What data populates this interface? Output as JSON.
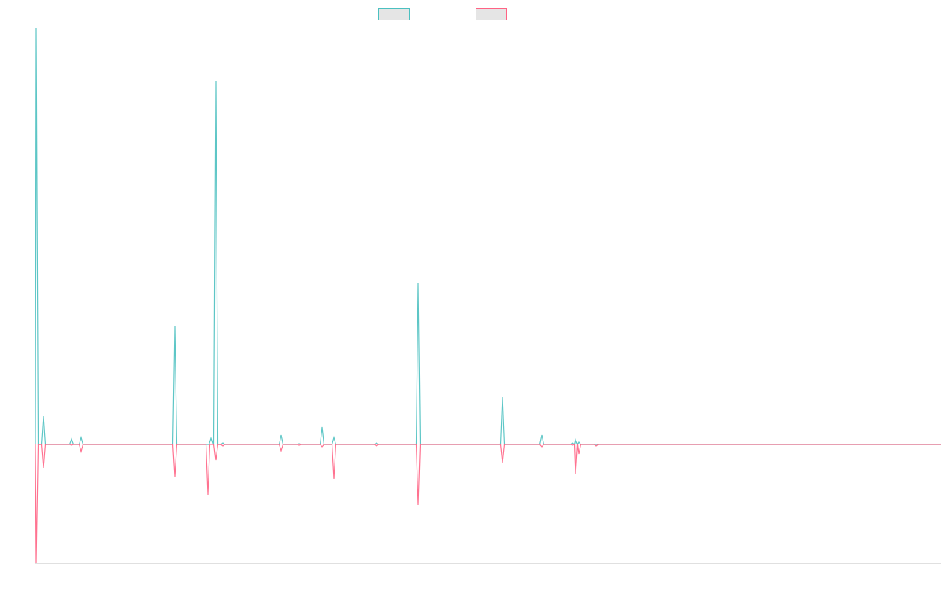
{
  "chart_data": {
    "type": "line",
    "title": "",
    "xlabel": "",
    "ylabel": "",
    "xlim": [
      0,
      1150
    ],
    "ylim": [
      -151,
      529
    ],
    "grid": false,
    "legend_position": "top-center",
    "series": [
      {
        "name": "",
        "color": "#4bc0c0",
        "peaks": [
          [
            1,
            529
          ],
          [
            10,
            36
          ],
          [
            46,
            7
          ],
          [
            58,
            9
          ],
          [
            177,
            150
          ],
          [
            223,
            8
          ],
          [
            229,
            462
          ],
          [
            238,
            2
          ],
          [
            312,
            12
          ],
          [
            335,
            1
          ],
          [
            364,
            22
          ],
          [
            379,
            9
          ],
          [
            433,
            2
          ],
          [
            486,
            205
          ],
          [
            593,
            60
          ],
          [
            643,
            12
          ],
          [
            682,
            2
          ],
          [
            686,
            6
          ],
          [
            690,
            3
          ]
        ]
      },
      {
        "name": "",
        "color": "#ff6384",
        "peaks": [
          [
            1,
            -151
          ],
          [
            10,
            -30
          ],
          [
            46,
            -1
          ],
          [
            58,
            -9
          ],
          [
            177,
            -41
          ],
          [
            219,
            -64
          ],
          [
            229,
            -20
          ],
          [
            238,
            -2
          ],
          [
            312,
            -8
          ],
          [
            335,
            -1
          ],
          [
            364,
            -3
          ],
          [
            379,
            -44
          ],
          [
            433,
            -2
          ],
          [
            486,
            -77
          ],
          [
            593,
            -23
          ],
          [
            643,
            -3
          ],
          [
            682,
            -1
          ],
          [
            686,
            -38
          ],
          [
            690,
            -12
          ],
          [
            712,
            -2
          ]
        ]
      }
    ]
  }
}
